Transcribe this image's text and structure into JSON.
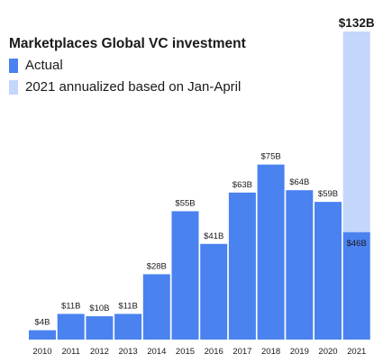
{
  "colors": {
    "actual": "#4a82f0",
    "annualized": "#c3d6fb"
  },
  "legend": {
    "actual": "Actual",
    "annualized": "2021 annualized based on Jan-April"
  },
  "chart_data": {
    "type": "bar",
    "title": "Marketplaces Global VC investment",
    "xlabel": "",
    "ylabel": "",
    "ylim": [
      0,
      132
    ],
    "grid": false,
    "legend_placement": "top-left",
    "categories": [
      "2010",
      "2011",
      "2012",
      "2013",
      "2014",
      "2015",
      "2016",
      "2017",
      "2018",
      "2019",
      "2020",
      "2021"
    ],
    "series": [
      {
        "name": "Actual",
        "values": [
          4,
          11,
          10,
          11,
          28,
          55,
          41,
          63,
          75,
          64,
          59,
          46
        ],
        "labels": [
          "$4B",
          "$11B",
          "$10B",
          "$11B",
          "$28B",
          "$55B",
          "$41B",
          "$63B",
          "$75B",
          "$64B",
          "$59B",
          "$46B"
        ]
      },
      {
        "name": "2021 annualized based on Jan-April",
        "values": [
          null,
          null,
          null,
          null,
          null,
          null,
          null,
          null,
          null,
          null,
          null,
          132
        ],
        "labels": [
          "",
          "",
          "",
          "",
          "",
          "",
          "",
          "",
          "",
          "",
          "",
          "$132B"
        ]
      }
    ]
  }
}
